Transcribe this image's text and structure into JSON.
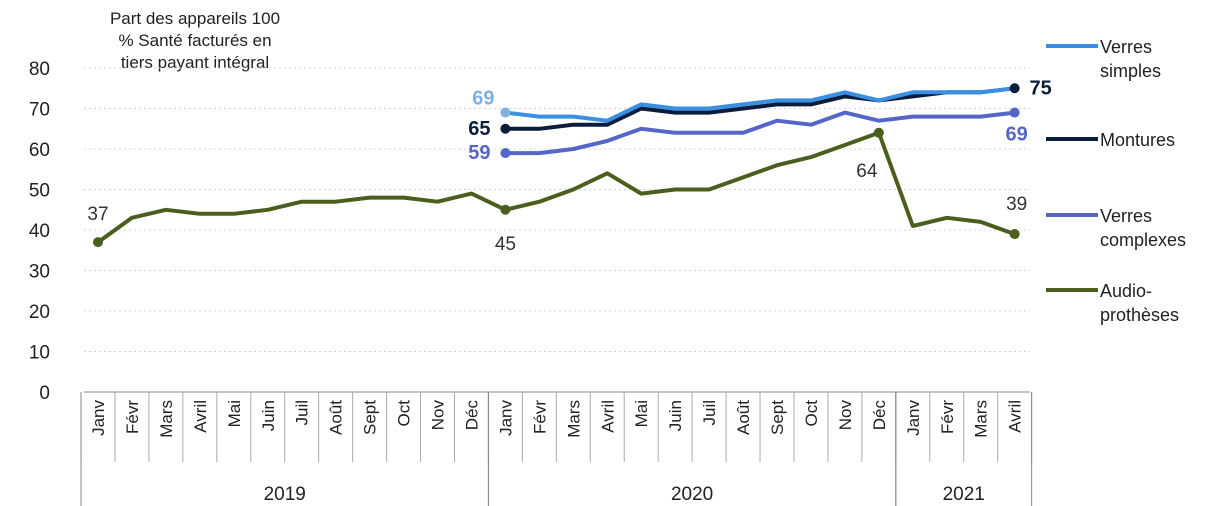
{
  "chart_data": {
    "type": "line",
    "ylabel_lines": [
      "Part des appareils 100",
      "% Santé facturés en",
      "tiers payant intégral"
    ],
    "ylim": [
      0,
      80
    ],
    "yticks": [
      0,
      10,
      20,
      30,
      40,
      50,
      60,
      70,
      80
    ],
    "grid": true,
    "legend_position": "right",
    "months": [
      "Janv",
      "Févr",
      "Mars",
      "Avril",
      "Mai",
      "Juin",
      "Juil",
      "Août",
      "Sept",
      "Oct",
      "Nov",
      "Déc",
      "Janv",
      "Févr",
      "Mars",
      "Avril",
      "Mai",
      "Juin",
      "Juil",
      "Août",
      "Sept",
      "Oct",
      "Nov",
      "Déc",
      "Janv",
      "Févr",
      "Mars",
      "Avril"
    ],
    "years": [
      {
        "label": "2019",
        "start": 0,
        "end": 11
      },
      {
        "label": "2020",
        "start": 12,
        "end": 23
      },
      {
        "label": "2021",
        "start": 24,
        "end": 27
      }
    ],
    "series": [
      {
        "name": "Verres simples",
        "legend_lines": [
          "Verres",
          "simples"
        ],
        "color": "#3a8fe3",
        "start": 12,
        "values": [
          69,
          68,
          68,
          67,
          71,
          70,
          70,
          71,
          72,
          72,
          74,
          72,
          74,
          74,
          74,
          75
        ]
      },
      {
        "name": "Montures",
        "legend_lines": [
          "Montures"
        ],
        "color": "#0b1c3d",
        "start": 12,
        "values": [
          65,
          65,
          66,
          66,
          70,
          69,
          69,
          70,
          71,
          71,
          73,
          72,
          73,
          74,
          74,
          75
        ]
      },
      {
        "name": "Verres complexes",
        "legend_lines": [
          "Verres",
          "complexes"
        ],
        "color": "#5566c9",
        "start": 12,
        "values": [
          59,
          59,
          60,
          62,
          65,
          64,
          64,
          64,
          67,
          66,
          69,
          67,
          68,
          68,
          68,
          69
        ]
      },
      {
        "name": "Audio-prothèses",
        "legend_lines": [
          "Audio-",
          "prothèses"
        ],
        "color": "#4b5e1d",
        "start": 0,
        "values": [
          37,
          43,
          45,
          44,
          44,
          45,
          47,
          47,
          48,
          48,
          47,
          49,
          45,
          47,
          50,
          54,
          49,
          50,
          50,
          53,
          56,
          58,
          61,
          64,
          41,
          43,
          42,
          39
        ]
      }
    ],
    "annotations": [
      {
        "series": "Verres simples",
        "index": 12,
        "text": "69",
        "color": "#7fb0e0",
        "bold": true
      },
      {
        "series": "Montures",
        "index": 12,
        "text": "65",
        "color": "#0b1c3d",
        "bold": true
      },
      {
        "series": "Verres complexes",
        "index": 12,
        "text": "59",
        "color": "#5566c9",
        "bold": true
      },
      {
        "series": "Audio-prothèses",
        "index": 0,
        "text": "37",
        "color": "#333333",
        "bold": false
      },
      {
        "series": "Audio-prothèses",
        "index": 12,
        "text": "45",
        "color": "#333333",
        "bold": false
      },
      {
        "series": "Audio-prothèses",
        "index": 23,
        "text": "64",
        "color": "#333333",
        "bold": false
      },
      {
        "series": "Montures",
        "index": 27,
        "text": "75",
        "color": "#0b1c3d",
        "bold": true
      },
      {
        "series": "Verres complexes",
        "index": 27,
        "text": "69",
        "color": "#5566c9",
        "bold": true
      },
      {
        "series": "Audio-prothèses",
        "index": 27,
        "text": "39",
        "color": "#333333",
        "bold": false
      }
    ]
  }
}
